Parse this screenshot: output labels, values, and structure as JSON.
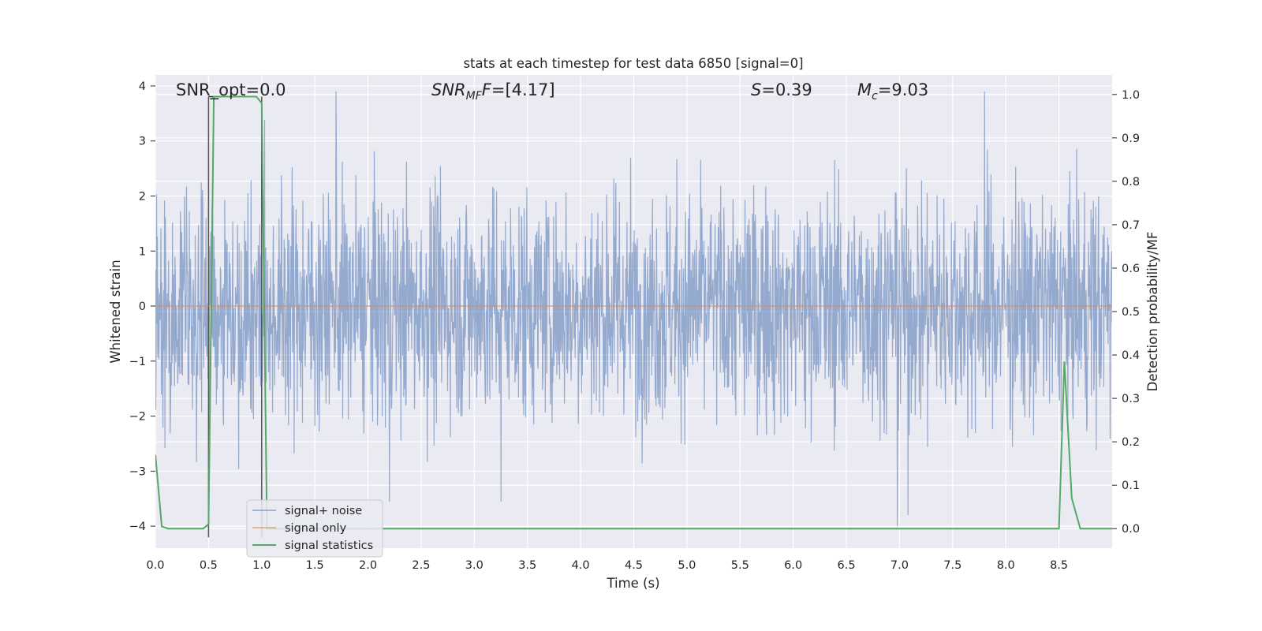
{
  "chart_data": {
    "type": "line",
    "title": "stats at each timestep for test data 6850 [signal=0]",
    "xlabel": "Time (s)",
    "ylabel": "Whitened strain",
    "y2label": "Detection probability/MF",
    "xlim": [
      0.0,
      9.0
    ],
    "ylim": [
      -4.4,
      4.2
    ],
    "y2lim": [
      -0.045,
      1.045
    ],
    "xticks": [
      "0.0",
      "0.5",
      "1.0",
      "1.5",
      "2.0",
      "2.5",
      "3.0",
      "3.5",
      "4.0",
      "4.5",
      "5.0",
      "5.5",
      "6.0",
      "6.5",
      "7.0",
      "7.5",
      "8.0",
      "8.5"
    ],
    "yticks": [
      "4",
      "3",
      "2",
      "1",
      "0",
      "−1",
      "−2",
      "−3",
      "−4"
    ],
    "y2ticks": [
      "1.0",
      "0.9",
      "0.8",
      "0.7",
      "0.6",
      "0.5",
      "0.4",
      "0.3",
      "0.2",
      "0.1",
      "0.0"
    ],
    "grid": true,
    "legend": {
      "position": "lower-left",
      "entries": [
        "signal+ noise",
        "signal only",
        "signal statistics"
      ]
    },
    "annotations": {
      "snr_opt": "SNR_opt=0.0",
      "snr_mf_sym": "SNR",
      "snr_mf_sub": "MF",
      "snr_mf_val": "=[4.17]",
      "s_sym": "S",
      "s_val": "=0.39",
      "mc_sym": "M",
      "mc_sub": "c",
      "mc_val": "=9.03"
    },
    "series": [
      {
        "name": "signal+ noise",
        "color": "#4c72b0",
        "axis": "left",
        "style": "dense noise",
        "range": [
          -4.0,
          3.9
        ],
        "peaks": [
          {
            "x": 1.7,
            "y": 3.9
          },
          {
            "x": 7.8,
            "y": 3.9
          },
          {
            "x": 2.2,
            "y": -3.55
          },
          {
            "x": 3.25,
            "y": -3.55
          },
          {
            "x": 6.98,
            "y": -4.0
          },
          {
            "x": 7.08,
            "y": -3.8
          }
        ]
      },
      {
        "name": "signal only",
        "color": "#dd8452",
        "axis": "left",
        "x": [
          0.0,
          9.0
        ],
        "y": [
          0.0,
          0.0
        ]
      },
      {
        "name": "signal statistics",
        "color": "#55a868",
        "axis": "right",
        "x": [
          0.0,
          0.06,
          0.12,
          0.2,
          0.3,
          0.4,
          0.45,
          0.5,
          0.55,
          0.6,
          0.7,
          0.8,
          0.9,
          0.95,
          1.0,
          1.05,
          1.1,
          1.2,
          2.0,
          3.0,
          4.0,
          5.0,
          6.0,
          7.0,
          8.0,
          8.5,
          8.55,
          8.62,
          8.7,
          8.8,
          9.0
        ],
        "y": [
          0.17,
          0.005,
          0.0,
          0.0,
          0.0,
          0.0,
          0.0,
          0.01,
          0.995,
          0.995,
          0.995,
          0.995,
          0.995,
          0.995,
          0.98,
          0.0,
          0.0,
          0.0,
          0.0,
          0.0,
          0.0,
          0.0,
          0.0,
          0.0,
          0.0,
          0.0,
          0.385,
          0.07,
          0.0,
          0.0,
          0.0
        ]
      }
    ],
    "markers": [
      {
        "name": "marker-line-left",
        "x": 0.5,
        "color": "#555555"
      },
      {
        "name": "marker-line-right",
        "x": 1.0,
        "color": "#555555"
      }
    ]
  }
}
